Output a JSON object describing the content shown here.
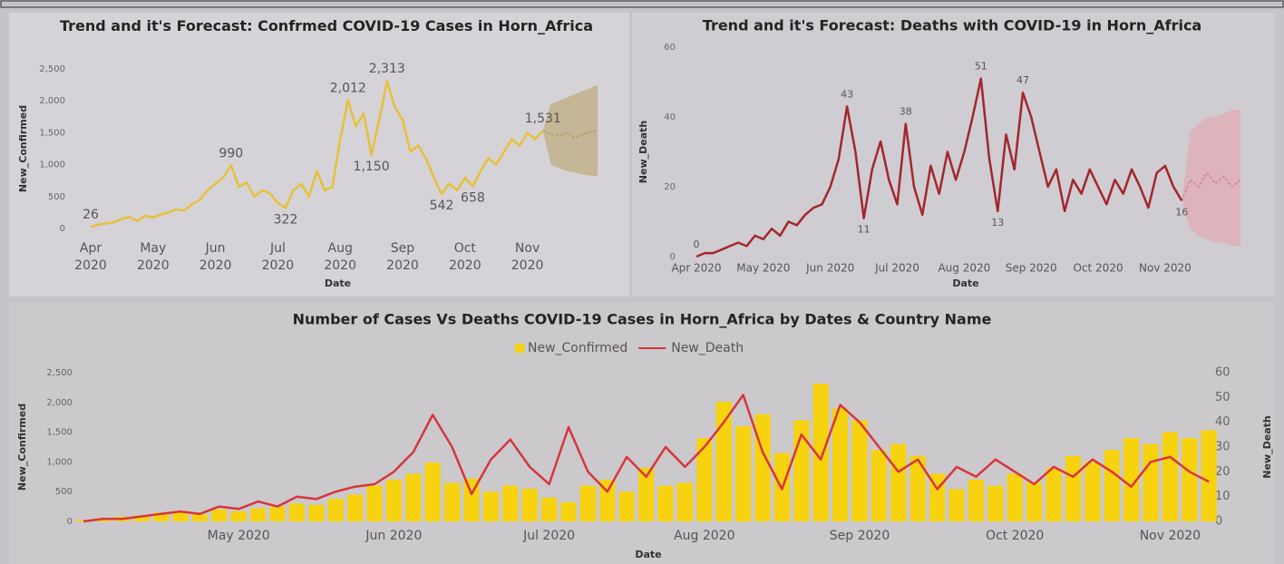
{
  "chart_data": [
    {
      "type": "line",
      "title": "Trend and it's Forecast: Confrmed COVID-19 Cases in Horn_Africa",
      "x_label": "Date",
      "y_label": "New_Confirmed",
      "categories": [
        "Apr 2020",
        null,
        null,
        null,
        null,
        null,
        null,
        null,
        "May 2020",
        null,
        null,
        null,
        null,
        null,
        null,
        null,
        "Jun 2020",
        null,
        null,
        null,
        null,
        null,
        null,
        null,
        "Jul 2020",
        null,
        null,
        null,
        null,
        null,
        null,
        null,
        "Aug 2020",
        null,
        null,
        null,
        null,
        null,
        null,
        null,
        "Sep 2020",
        null,
        null,
        null,
        null,
        null,
        null,
        null,
        "Oct 2020",
        null,
        null,
        null,
        null,
        null,
        null,
        null,
        "Nov 2020",
        null,
        null,
        null,
        null,
        null,
        null,
        null,
        null,
        null
      ],
      "series": [
        {
          "color": "#e6c13a",
          "values": [
            26,
            60,
            80,
            100,
            150,
            180,
            120,
            200,
            170,
            220,
            250,
            300,
            280,
            380,
            450,
            600,
            700,
            800,
            990,
            650,
            720,
            500,
            600,
            550,
            400,
            322,
            600,
            700,
            500,
            900,
            600,
            650,
            1400,
            2012,
            1600,
            1800,
            1150,
            1700,
            2313,
            1900,
            1700,
            1200,
            1300,
            1100,
            800,
            542,
            700,
            600,
            800,
            658,
            900,
            1100,
            1000,
            1200,
            1400,
            1300,
            1500,
            1400,
            1531,
            null,
            null,
            null,
            null,
            null,
            null,
            null
          ],
          "value_labels": [
            "26",
            null,
            null,
            null,
            null,
            null,
            null,
            null,
            null,
            null,
            null,
            null,
            null,
            null,
            null,
            null,
            null,
            null,
            "990",
            null,
            null,
            null,
            null,
            null,
            null,
            "322",
            null,
            null,
            null,
            null,
            null,
            null,
            null,
            "2,012",
            null,
            null,
            "1,150",
            null,
            "2,313",
            null,
            null,
            null,
            null,
            null,
            null,
            "542",
            null,
            null,
            null,
            "658",
            null,
            null,
            null,
            null,
            null,
            null,
            null,
            null,
            "1,531",
            null,
            null,
            null,
            null,
            null,
            null,
            null
          ]
        }
      ],
      "forecast": {
        "color": "#b59f55",
        "band_color": "#b8a46a",
        "values": [
          null,
          null,
          null,
          null,
          null,
          null,
          null,
          null,
          null,
          null,
          null,
          null,
          null,
          null,
          null,
          null,
          null,
          null,
          null,
          null,
          null,
          null,
          null,
          null,
          null,
          null,
          null,
          null,
          null,
          null,
          null,
          null,
          null,
          null,
          null,
          null,
          null,
          null,
          null,
          null,
          null,
          null,
          null,
          null,
          null,
          null,
          null,
          null,
          null,
          null,
          null,
          null,
          null,
          null,
          null,
          null,
          null,
          null,
          1531,
          1480,
          1450,
          1500,
          1420,
          1470,
          1510,
          1530
        ],
        "lower": [
          null,
          null,
          null,
          null,
          null,
          null,
          null,
          null,
          null,
          null,
          null,
          null,
          null,
          null,
          null,
          null,
          null,
          null,
          null,
          null,
          null,
          null,
          null,
          null,
          null,
          null,
          null,
          null,
          null,
          null,
          null,
          null,
          null,
          null,
          null,
          null,
          null,
          null,
          null,
          null,
          null,
          null,
          null,
          null,
          null,
          null,
          null,
          null,
          null,
          null,
          null,
          null,
          null,
          null,
          null,
          null,
          null,
          null,
          1531,
          1000,
          950,
          900,
          880,
          850,
          830,
          820
        ],
        "upper": [
          null,
          null,
          null,
          null,
          null,
          null,
          null,
          null,
          null,
          null,
          null,
          null,
          null,
          null,
          null,
          null,
          null,
          null,
          null,
          null,
          null,
          null,
          null,
          null,
          null,
          null,
          null,
          null,
          null,
          null,
          null,
          null,
          null,
          null,
          null,
          null,
          null,
          null,
          null,
          null,
          null,
          null,
          null,
          null,
          null,
          null,
          null,
          null,
          null,
          null,
          null,
          null,
          null,
          null,
          null,
          null,
          null,
          null,
          1531,
          1950,
          2000,
          2050,
          2100,
          2150,
          2200,
          2250
        ]
      },
      "ylim": [
        0,
        2500
      ],
      "yticks": [
        0,
        500,
        {
          "value": 1000,
          "label": "1,000"
        },
        {
          "value": 1500,
          "label": "1,500"
        },
        {
          "value": 2000,
          "label": "2,000"
        },
        {
          "value": 2500,
          "label": "2,500"
        }
      ]
    },
    {
      "type": "line",
      "title": "Trend and it's Forecast: Deaths with COVID-19 in Horn_Africa",
      "x_label": "Date",
      "y_label": "New_Death",
      "categories": [
        "Apr 2020",
        null,
        null,
        null,
        null,
        null,
        null,
        null,
        "May 2020",
        null,
        null,
        null,
        null,
        null,
        null,
        null,
        "Jun 2020",
        null,
        null,
        null,
        null,
        null,
        null,
        null,
        "Jul 2020",
        null,
        null,
        null,
        null,
        null,
        null,
        null,
        "Aug 2020",
        null,
        null,
        null,
        null,
        null,
        null,
        null,
        "Sep 2020",
        null,
        null,
        null,
        null,
        null,
        null,
        null,
        "Oct 2020",
        null,
        null,
        null,
        null,
        null,
        null,
        null,
        "Nov 2020",
        null,
        null,
        null,
        null,
        null,
        null,
        null,
        null,
        null
      ],
      "series": [
        {
          "color": "#a4262c",
          "values": [
            0,
            1,
            1,
            2,
            3,
            4,
            3,
            6,
            5,
            8,
            6,
            10,
            9,
            12,
            14,
            15,
            20,
            28,
            43,
            30,
            11,
            25,
            33,
            22,
            15,
            38,
            20,
            12,
            26,
            18,
            30,
            22,
            30,
            40,
            51,
            28,
            13,
            35,
            25,
            47,
            40,
            30,
            20,
            25,
            13,
            22,
            18,
            25,
            20,
            15,
            22,
            18,
            25,
            20,
            14,
            24,
            26,
            20,
            16,
            null,
            null,
            null,
            null,
            null,
            null,
            null
          ],
          "value_labels": [
            "0",
            null,
            null,
            null,
            null,
            null,
            null,
            null,
            null,
            null,
            null,
            null,
            null,
            null,
            null,
            null,
            null,
            null,
            "43",
            null,
            "11",
            null,
            null,
            null,
            null,
            "38",
            null,
            null,
            null,
            null,
            null,
            null,
            null,
            null,
            "51",
            null,
            "13",
            null,
            null,
            "47",
            null,
            null,
            null,
            null,
            null,
            null,
            null,
            null,
            null,
            null,
            null,
            null,
            null,
            null,
            null,
            null,
            null,
            null,
            "16",
            null,
            null,
            null,
            null,
            null,
            null,
            null
          ]
        }
      ],
      "forecast": {
        "color": "#d9808a",
        "band_color": "#e6a3ab",
        "values": [
          null,
          null,
          null,
          null,
          null,
          null,
          null,
          null,
          null,
          null,
          null,
          null,
          null,
          null,
          null,
          null,
          null,
          null,
          null,
          null,
          null,
          null,
          null,
          null,
          null,
          null,
          null,
          null,
          null,
          null,
          null,
          null,
          null,
          null,
          null,
          null,
          null,
          null,
          null,
          null,
          null,
          null,
          null,
          null,
          null,
          null,
          null,
          null,
          null,
          null,
          null,
          null,
          null,
          null,
          null,
          null,
          null,
          null,
          16,
          22,
          20,
          24,
          21,
          23,
          20,
          22
        ],
        "lower": [
          null,
          null,
          null,
          null,
          null,
          null,
          null,
          null,
          null,
          null,
          null,
          null,
          null,
          null,
          null,
          null,
          null,
          null,
          null,
          null,
          null,
          null,
          null,
          null,
          null,
          null,
          null,
          null,
          null,
          null,
          null,
          null,
          null,
          null,
          null,
          null,
          null,
          null,
          null,
          null,
          null,
          null,
          null,
          null,
          null,
          null,
          null,
          null,
          null,
          null,
          null,
          null,
          null,
          null,
          null,
          null,
          null,
          null,
          16,
          8,
          6,
          5,
          4,
          4,
          3,
          3
        ],
        "upper": [
          null,
          null,
          null,
          null,
          null,
          null,
          null,
          null,
          null,
          null,
          null,
          null,
          null,
          null,
          null,
          null,
          null,
          null,
          null,
          null,
          null,
          null,
          null,
          null,
          null,
          null,
          null,
          null,
          null,
          null,
          null,
          null,
          null,
          null,
          null,
          null,
          null,
          null,
          null,
          null,
          null,
          null,
          null,
          null,
          null,
          null,
          null,
          null,
          null,
          null,
          null,
          null,
          null,
          null,
          null,
          null,
          null,
          null,
          16,
          36,
          38,
          40,
          40,
          41,
          42,
          42
        ]
      },
      "ylim": [
        0,
        60
      ],
      "yticks": [
        0,
        20,
        40,
        60
      ]
    },
    {
      "type": "combo",
      "title": "Number of Cases Vs Deaths COVID-19 Cases in Horn_Africa by Dates & Country Name",
      "x_label": "Date",
      "y_label": "New_Confirmed",
      "y2_label": "New_Death",
      "legend": "top",
      "categories": [
        null,
        null,
        null,
        null,
        null,
        null,
        null,
        null,
        "May 2020",
        null,
        null,
        null,
        null,
        null,
        null,
        null,
        "Jun 2020",
        null,
        null,
        null,
        null,
        null,
        null,
        null,
        "Jul 2020",
        null,
        null,
        null,
        null,
        null,
        null,
        null,
        "Aug 2020",
        null,
        null,
        null,
        null,
        null,
        null,
        null,
        "Sep 2020",
        null,
        null,
        null,
        null,
        null,
        null,
        null,
        "Oct 2020",
        null,
        null,
        null,
        null,
        null,
        null,
        null,
        "Nov 2020",
        null,
        null
      ],
      "series": [
        {
          "name": "New_Confirmed",
          "type": "bar",
          "color": "#f7d30f",
          "values": [
            26,
            60,
            80,
            100,
            150,
            180,
            120,
            200,
            170,
            220,
            250,
            300,
            280,
            380,
            450,
            600,
            700,
            800,
            990,
            650,
            720,
            500,
            600,
            550,
            400,
            322,
            600,
            700,
            500,
            900,
            600,
            650,
            1400,
            2012,
            1600,
            1800,
            1150,
            1700,
            2313,
            1900,
            1700,
            1200,
            1300,
            1100,
            800,
            542,
            700,
            600,
            800,
            658,
            900,
            1100,
            1000,
            1200,
            1400,
            1300,
            1500,
            1400,
            1531
          ]
        },
        {
          "name": "New_Death",
          "type": "line",
          "axis": "y2",
          "color": "#d6363e",
          "values": [
            0,
            1,
            1,
            2,
            3,
            4,
            3,
            6,
            5,
            8,
            6,
            10,
            9,
            12,
            14,
            15,
            20,
            28,
            43,
            30,
            11,
            25,
            33,
            22,
            15,
            38,
            20,
            12,
            26,
            18,
            30,
            22,
            30,
            40,
            51,
            28,
            13,
            35,
            25,
            47,
            40,
            30,
            20,
            25,
            13,
            22,
            18,
            25,
            20,
            15,
            22,
            18,
            25,
            20,
            14,
            24,
            26,
            20,
            16
          ]
        }
      ],
      "ylim": [
        0,
        2500
      ],
      "yticks": [
        0,
        500,
        {
          "value": 1000,
          "label": "1,000"
        },
        {
          "value": 1500,
          "label": "1,500"
        },
        {
          "value": 2000,
          "label": "2,000"
        },
        {
          "value": 2500,
          "label": "2,500"
        }
      ],
      "y2lim": [
        0,
        60
      ],
      "y2ticks": [
        0,
        10,
        20,
        30,
        40,
        50,
        60
      ]
    }
  ]
}
